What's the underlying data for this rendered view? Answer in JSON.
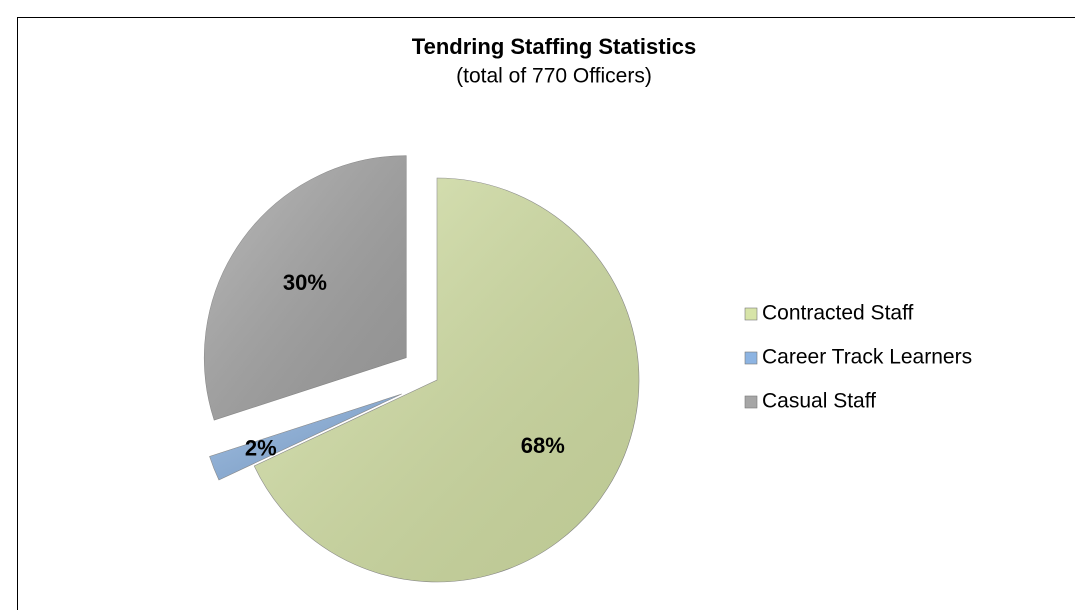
{
  "chart_data": {
    "type": "pie",
    "title": "Tendring Staffing Statistics",
    "subtitle": "(total of 770 Officers)",
    "categories": [
      "Contracted Staff",
      "Career Track Learners",
      "Casual Staff"
    ],
    "values": [
      68,
      2,
      30
    ],
    "value_labels": [
      "68%",
      "2%",
      "30%"
    ],
    "colors": [
      "#d7e4a8",
      "#8db4e2",
      "#a6a6a6"
    ],
    "legend": "right"
  }
}
